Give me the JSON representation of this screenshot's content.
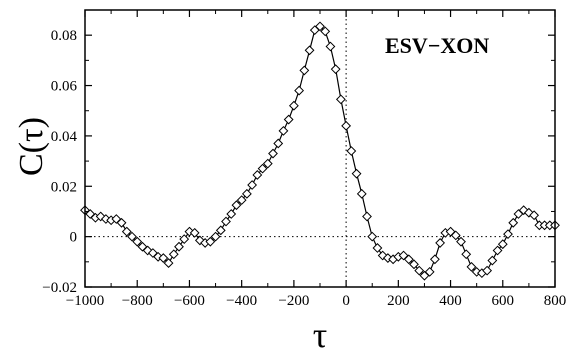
{
  "chart_data": {
    "type": "line",
    "xlabel": "τ",
    "ylabel": "C(τ)",
    "annotation": "ESV−XON",
    "xlim": [
      -1000,
      800
    ],
    "ylim": [
      -0.02,
      0.09
    ],
    "x_ticks": [
      -1000,
      -800,
      -600,
      -400,
      -200,
      0,
      200,
      400,
      600,
      800
    ],
    "x_tick_labels": [
      "−1000",
      "−800",
      "−600",
      "−400",
      "−200",
      "0",
      "200",
      "400",
      "600",
      "800"
    ],
    "y_ticks": [
      -0.02,
      0,
      0.02,
      0.04,
      0.06,
      0.08
    ],
    "y_tick_labels": [
      "−0.02",
      "0",
      "0.02",
      "0.04",
      "0.06",
      "0.08"
    ],
    "reference_lines": {
      "y": 0,
      "x": 0,
      "style": "dotted"
    },
    "marker": "diamond",
    "series": [
      {
        "x": [
          -1000,
          -980,
          -960,
          -940,
          -920,
          -900,
          -880,
          -860,
          -840,
          -820,
          -800,
          -780,
          -760,
          -740,
          -720,
          -700,
          -680,
          -660,
          -640,
          -620,
          -600,
          -580,
          -560,
          -540,
          -520,
          -500,
          -480,
          -460,
          -440,
          -420,
          -400,
          -380,
          -360,
          -340,
          -320,
          -300,
          -280,
          -260,
          -240,
          -220,
          -200,
          -180,
          -160,
          -140,
          -120,
          -100,
          -80,
          -60,
          -40,
          -20,
          0,
          20,
          40,
          60,
          80,
          100,
          120,
          140,
          160,
          180,
          200,
          220,
          240,
          260,
          280,
          300,
          320,
          340,
          360,
          380,
          400,
          420,
          440,
          460,
          480,
          500,
          520,
          540,
          560,
          580,
          600,
          620,
          640,
          660,
          680,
          700,
          720,
          740,
          760,
          780,
          800
        ],
        "y": [
          0.0105,
          0.009,
          0.0075,
          0.008,
          0.007,
          0.0065,
          0.007,
          0.0055,
          0.002,
          0.0,
          -0.002,
          -0.004,
          -0.0055,
          -0.0065,
          -0.008,
          -0.0085,
          -0.0105,
          -0.007,
          -0.004,
          -0.001,
          0.002,
          0.0015,
          -0.0015,
          -0.0025,
          -0.002,
          0.0,
          0.0025,
          0.006,
          0.009,
          0.0125,
          0.0145,
          0.017,
          0.0205,
          0.0245,
          0.027,
          0.029,
          0.033,
          0.037,
          0.042,
          0.0465,
          0.052,
          0.058,
          0.066,
          0.074,
          0.082,
          0.0835,
          0.0815,
          0.0755,
          0.0665,
          0.0545,
          0.044,
          0.034,
          0.025,
          0.017,
          0.008,
          0.0,
          -0.0045,
          -0.0075,
          -0.0085,
          -0.009,
          -0.008,
          -0.0075,
          -0.009,
          -0.011,
          -0.0135,
          -0.0155,
          -0.014,
          -0.009,
          -0.0025,
          0.0015,
          0.002,
          0.0005,
          -0.002,
          -0.007,
          -0.012,
          -0.014,
          -0.0145,
          -0.0135,
          -0.0095,
          -0.0055,
          -0.003,
          0.001,
          0.0055,
          0.009,
          0.0105,
          0.0095,
          0.0085,
          0.0045,
          0.0045,
          0.0045,
          0.0045
        ]
      }
    ]
  }
}
